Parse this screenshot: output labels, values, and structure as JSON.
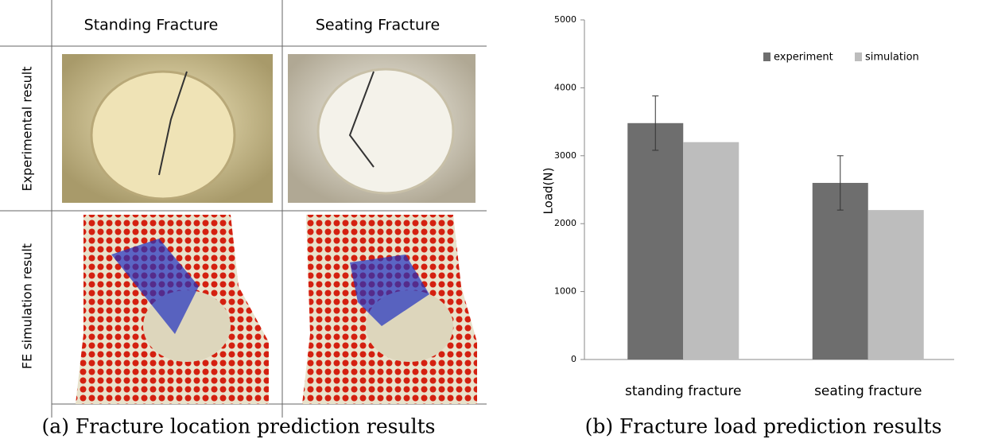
{
  "panel_a": {
    "columns": [
      "Standing Fracture",
      "Seating Fracture"
    ],
    "rows": [
      "Experimental result",
      "FE simulation result"
    ],
    "caption": "(a) Fracture location prediction results"
  },
  "chart_data": {
    "type": "bar",
    "caption": "(b) Fracture load prediction results",
    "y_label": "Load(N)",
    "categories": [
      "standing fracture",
      "seating fracture"
    ],
    "series": [
      {
        "name": "experiment",
        "color": "#6e6e6e",
        "values": [
          3480,
          2600
        ],
        "errors": [
          400,
          400
        ]
      },
      {
        "name": "simulation",
        "color": "#bdbdbd",
        "values": [
          3200,
          2200
        ]
      }
    ],
    "ylim": [
      0,
      5000
    ],
    "yticks": [
      0,
      1000,
      2000,
      3000,
      4000,
      5000
    ]
  }
}
